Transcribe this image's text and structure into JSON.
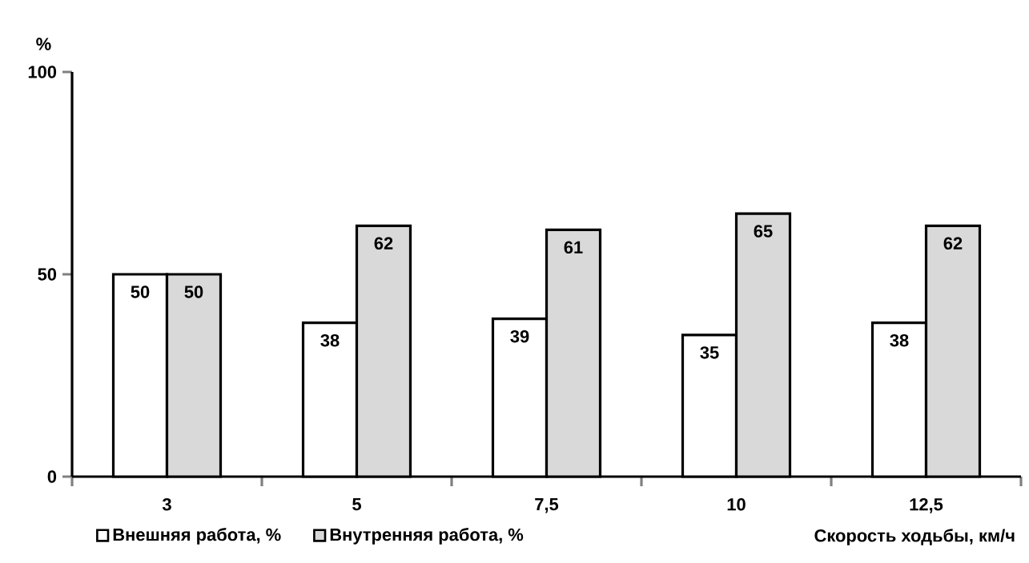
{
  "chart_data": {
    "type": "bar",
    "ylabel": "%",
    "xlabel": "Скорость ходьбы, км/ч",
    "categories": [
      "3",
      "5",
      "7,5",
      "10",
      "12,5"
    ],
    "series": [
      {
        "name": "Внешняя работа, %",
        "color": "#ffffff",
        "values": [
          50,
          38,
          39,
          35,
          38
        ]
      },
      {
        "name": "Внутренняя работа, %",
        "color": "#d9d9d9",
        "values": [
          50,
          62,
          61,
          65,
          62
        ]
      }
    ],
    "ylim": [
      0,
      100
    ],
    "yticks": [
      0,
      50,
      100
    ],
    "data_labels": true,
    "legend": "bottom",
    "grid": false
  }
}
